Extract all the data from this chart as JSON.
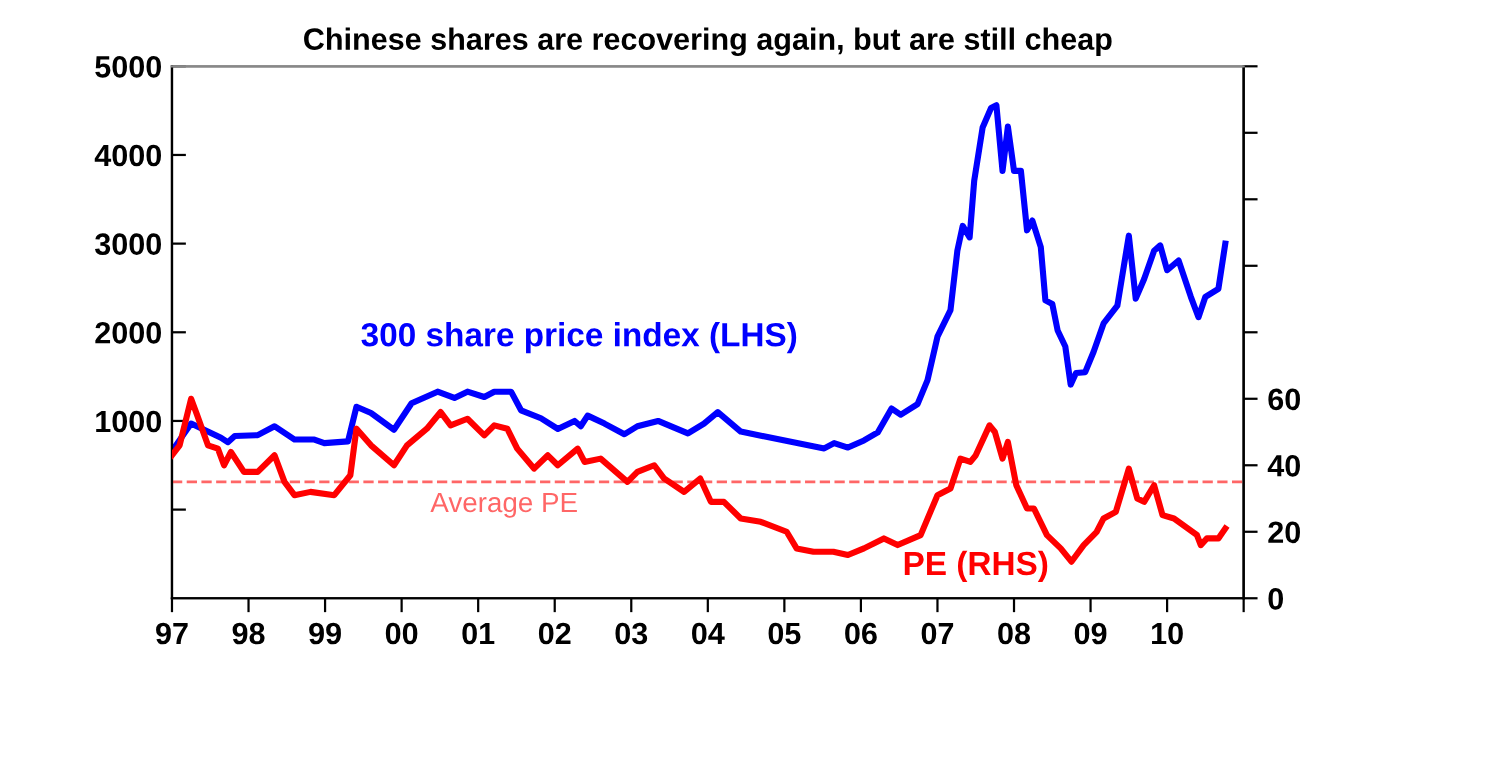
{
  "chart_data": {
    "type": "line",
    "title": "Chinese shares are recovering again, but are still cheap",
    "xlim": [
      1997,
      2011
    ],
    "xticks": [
      {
        "value": 1997,
        "label": "97"
      },
      {
        "value": 1998,
        "label": "98"
      },
      {
        "value": 1999,
        "label": "99"
      },
      {
        "value": 2000,
        "label": "00"
      },
      {
        "value": 2001,
        "label": "01"
      },
      {
        "value": 2002,
        "label": "02"
      },
      {
        "value": 2003,
        "label": "03"
      },
      {
        "value": 2004,
        "label": "04"
      },
      {
        "value": 2005,
        "label": "05"
      },
      {
        "value": 2006,
        "label": "06"
      },
      {
        "value": 2007,
        "label": "07"
      },
      {
        "value": 2008,
        "label": "08"
      },
      {
        "value": 2009,
        "label": "09"
      },
      {
        "value": 2010,
        "label": "10"
      },
      {
        "value": 2011,
        "label": null
      }
    ],
    "ylim": [
      -1000,
      5000
    ],
    "yticks": [
      {
        "value": 0,
        "label": null
      },
      1000,
      2000,
      3000,
      4000,
      5000
    ],
    "y2lim": [
      0,
      160
    ],
    "y2ticks": [
      0,
      20,
      40,
      60,
      {
        "value": 80,
        "label": null
      },
      {
        "value": 100,
        "label": null
      },
      {
        "value": 120,
        "label": null
      },
      {
        "value": 140,
        "label": null
      },
      {
        "value": 160,
        "label": null
      }
    ],
    "grid": false,
    "legend": false,
    "marker": "none",
    "line_style": "solid",
    "series": [
      {
        "name": "300 share price index (LHS)",
        "color": "#0000ff",
        "axis": "y",
        "x": [
          1997.0,
          1997.25,
          1997.42,
          1997.64,
          1997.73,
          1997.82,
          1998.12,
          1998.34,
          1998.6,
          1998.86,
          1998.99,
          1999.3,
          1999.41,
          1999.6,
          1999.9,
          2000.13,
          2000.47,
          2000.69,
          2000.86,
          2001.08,
          2001.21,
          2001.43,
          2001.56,
          2001.82,
          2002.04,
          2002.26,
          2002.34,
          2002.43,
          2002.65,
          2002.91,
          2003.08,
          2003.35,
          2003.74,
          2003.95,
          2004.13,
          2004.43,
          2005.52,
          2005.65,
          2005.83,
          2006.04,
          2006.22,
          2006.4,
          2006.52,
          2006.74,
          2006.87,
          2007.0,
          2007.17,
          2007.26,
          2007.33,
          2007.42,
          2007.48,
          2007.59,
          2007.7,
          2007.77,
          2007.85,
          2007.92,
          2008.0,
          2008.09,
          2008.17,
          2008.24,
          2008.35,
          2008.41,
          2008.5,
          2008.57,
          2008.67,
          2008.74,
          2008.81,
          2008.93,
          2009.04,
          2009.17,
          2009.35,
          2009.5,
          2009.59,
          2009.7,
          2009.83,
          2009.91,
          2010.0,
          2010.15,
          2010.31,
          2010.41,
          2010.5,
          2010.67,
          2010.76
        ],
        "values": [
          660,
          970,
          900,
          810,
          760,
          830,
          840,
          940,
          790,
          790,
          750,
          770,
          1160,
          1090,
          900,
          1200,
          1330,
          1260,
          1330,
          1270,
          1330,
          1330,
          1120,
          1030,
          910,
          1000,
          940,
          1060,
          970,
          850,
          940,
          1000,
          860,
          970,
          1100,
          880,
          690,
          750,
          700,
          780,
          870,
          1140,
          1070,
          1190,
          1460,
          1950,
          2250,
          2920,
          3200,
          3070,
          3710,
          4310,
          4530,
          4560,
          3820,
          4320,
          3820,
          3820,
          3150,
          3260,
          2960,
          2360,
          2320,
          2020,
          1840,
          1410,
          1540,
          1550,
          1780,
          2100,
          2300,
          3090,
          2380,
          2600,
          2920,
          2980,
          2700,
          2810,
          2400,
          2170,
          2400,
          2490,
          3000
        ]
      },
      {
        "name": "PE (RHS)",
        "color": "#ff0000",
        "axis": "y2",
        "x": [
          1997.0,
          1997.1,
          1997.25,
          1997.33,
          1997.47,
          1997.6,
          1997.68,
          1997.77,
          1997.94,
          1998.12,
          1998.34,
          1998.47,
          1998.6,
          1998.81,
          1999.12,
          1999.33,
          1999.41,
          1999.6,
          1999.9,
          2000.07,
          2000.33,
          2000.51,
          2000.64,
          2000.86,
          2001.08,
          2001.21,
          2001.38,
          2001.51,
          2001.73,
          2001.91,
          2002.04,
          2002.3,
          2002.39,
          2002.6,
          2002.95,
          2003.08,
          2003.3,
          2003.43,
          2003.69,
          2003.9,
          2004.04,
          2004.21,
          2004.43,
          2004.69,
          2005.03,
          2005.16,
          2005.38,
          2005.64,
          2005.83,
          2006.04,
          2006.3,
          2006.48,
          2006.78,
          2007.0,
          2007.17,
          2007.3,
          2007.43,
          2007.5,
          2007.68,
          2007.75,
          2007.85,
          2007.92,
          2008.03,
          2008.17,
          2008.26,
          2008.43,
          2008.61,
          2008.75,
          2008.91,
          2009.08,
          2009.17,
          2009.33,
          2009.5,
          2009.61,
          2009.7,
          2009.83,
          2009.94,
          2010.09,
          2010.39,
          2010.44,
          2010.52,
          2010.67,
          2010.76
        ],
        "values": [
          43,
          46,
          60,
          55,
          46,
          45,
          40,
          44,
          38,
          38,
          43,
          35,
          31,
          32,
          31,
          37,
          51,
          46,
          40,
          46,
          51,
          56,
          52,
          54,
          49,
          52,
          51,
          45,
          39,
          43,
          40,
          45,
          41,
          42,
          35,
          38,
          40,
          36,
          32,
          36,
          29,
          29,
          24,
          23,
          20,
          15,
          14,
          14,
          13,
          15,
          18,
          16,
          19,
          31,
          33,
          42,
          41,
          43,
          52,
          50,
          42,
          47,
          34,
          27,
          27,
          19,
          15,
          11,
          16,
          20,
          24,
          26,
          39,
          30,
          29,
          34,
          25,
          24,
          19,
          16,
          18,
          18,
          21
        ]
      }
    ],
    "ref_lines": [
      {
        "axis": "y2",
        "value": 35,
        "label": "Average PE",
        "color": "#ff6666",
        "line_style": "dashed"
      }
    ]
  }
}
